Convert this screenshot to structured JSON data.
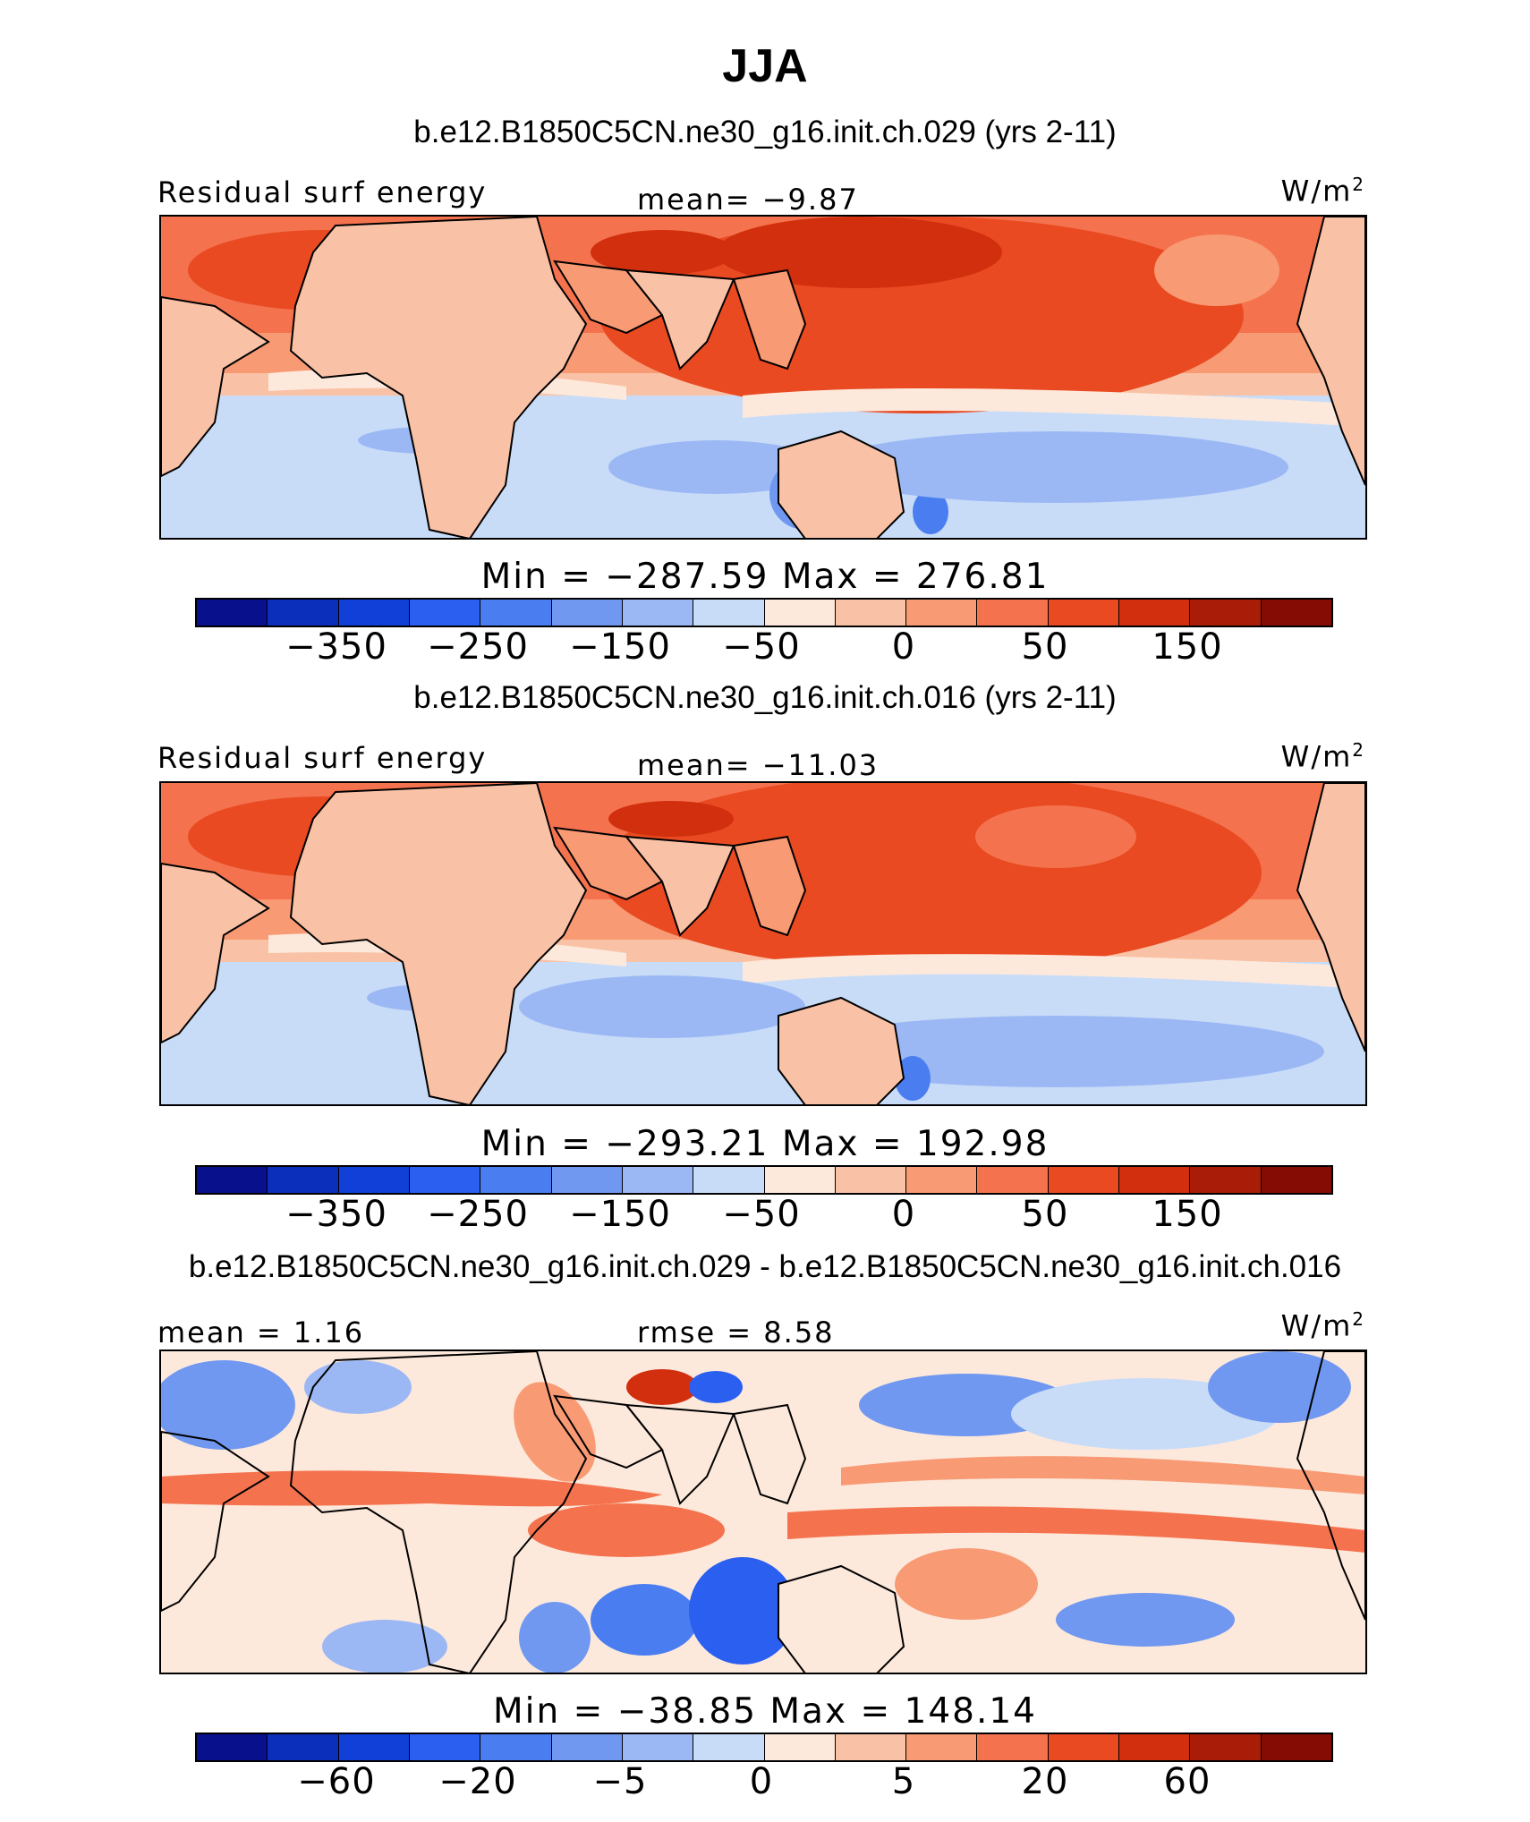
{
  "title": "JJA",
  "colorbar_colors": [
    "#08108c",
    "#0c2fbb",
    "#1040d8",
    "#2a5ff0",
    "#4a7ef0",
    "#7098f0",
    "#9cb8f4",
    "#c8dcf8",
    "#fde9dc",
    "#f9c2a6",
    "#f89a74",
    "#f4734e",
    "#e94a22",
    "#d12f0e",
    "#a81c08",
    "#840c04"
  ],
  "panels": [
    {
      "case": "b.e12.B1850C5CN.ne30_g16.init.ch.029 (yrs 2-11)",
      "left_label": "Residual surf energy",
      "center_label": "mean=   −9.87",
      "units": "W/m",
      "units_sup": "2",
      "minmax": "Min  =  −287.59  Max  =  276.81",
      "ticks": [
        "−350",
        "−250",
        "−150",
        "−50",
        "0",
        "50",
        "150"
      ]
    },
    {
      "case": "b.e12.B1850C5CN.ne30_g16.init.ch.016 (yrs 2-11)",
      "left_label": "Residual surf energy",
      "center_label": "mean= −11.03",
      "units": "W/m",
      "units_sup": "2",
      "minmax": "Min  =  −293.21  Max  =  192.98",
      "ticks": [
        "−350",
        "−250",
        "−150",
        "−50",
        "0",
        "50",
        "150"
      ]
    },
    {
      "case": "b.e12.B1850C5CN.ne30_g16.init.ch.029 - b.e12.B1850C5CN.ne30_g16.init.ch.016",
      "left_label": "mean =    1.16",
      "center_label": "rmse =    8.58",
      "units": "W/m",
      "units_sup": "2",
      "minmax": "Min  =  −38.85  Max  =  148.14",
      "ticks": [
        "−60",
        "−20",
        "−5",
        "0",
        "5",
        "20",
        "60"
      ]
    }
  ]
}
